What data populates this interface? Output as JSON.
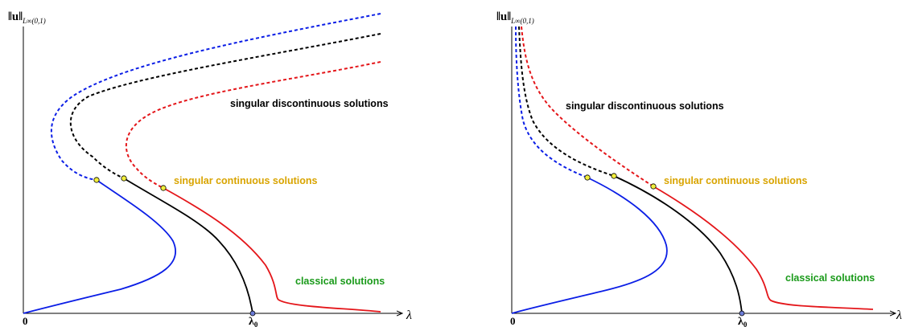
{
  "colors": {
    "blue": "#0b1ee6",
    "black": "#000000",
    "red": "#e4161a",
    "gold": "#d9a400",
    "green": "#1a9a1a",
    "dot_fill": "#f2ee3c",
    "lambda0_dot": "#6b7bd6"
  },
  "panels": [
    {
      "y_axis_label": "‖u‖",
      "y_axis_sub": "L∞(0,1)",
      "x_axis_label": "λ",
      "origin_label": "0",
      "lambda0_label": "λ",
      "lambda0_sub": "0",
      "labels": {
        "discontinuous": "singular discontinuous solutions",
        "continuous": "singular continuous solutions",
        "classical": "classical solutions"
      }
    },
    {
      "y_axis_label": "‖u‖",
      "y_axis_sub": "L∞(0,1)",
      "x_axis_label": "λ",
      "origin_label": "0",
      "lambda0_label": "λ",
      "lambda0_sub": "0",
      "labels": {
        "discontinuous": "singular discontinuous solutions",
        "continuous": "singular continuous solutions",
        "classical": "classical solutions"
      }
    }
  ]
}
